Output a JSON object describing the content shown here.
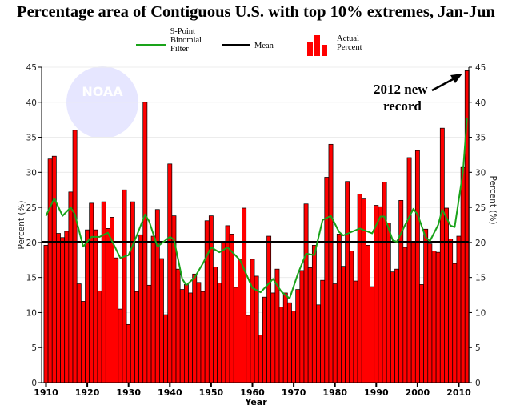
{
  "chart_data": {
    "type": "bar",
    "title": "Percentage area of Contiguous U.S. with top 10% extremes, Jan-Jun",
    "xlabel": "Year",
    "ylabel": "Percent (%)",
    "ylabel_right": "Percent (%)",
    "ylim": [
      0,
      45
    ],
    "yticks": [
      0,
      5,
      10,
      15,
      20,
      25,
      30,
      35,
      40,
      45
    ],
    "xticks": [
      1910,
      1920,
      1930,
      1940,
      1950,
      1960,
      1970,
      1980,
      1990,
      2000,
      2010
    ],
    "grid": true,
    "legend_placement": "top",
    "legend": {
      "filter": "9-Point Binomial Filter",
      "filter_lines": [
        "9-Point",
        "Binomial",
        "Filter"
      ],
      "mean": "Mean",
      "actual": "Actual Percent",
      "actual_lines": [
        "Actual",
        "Percent"
      ]
    },
    "years_start": 1910,
    "values": [
      19.6,
      31.9,
      32.3,
      21.3,
      20.7,
      21.6,
      27.2,
      36.0,
      14.1,
      11.6,
      21.8,
      25.6,
      21.8,
      13.1,
      25.8,
      22.0,
      23.6,
      17.8,
      10.5,
      27.5,
      8.3,
      25.8,
      13.0,
      21.1,
      40.0,
      13.9,
      20.9,
      24.7,
      17.7,
      9.7,
      31.2,
      23.8,
      16.2,
      13.3,
      14.0,
      12.8,
      15.5,
      14.3,
      13.0,
      23.1,
      23.8,
      16.5,
      14.2,
      20.1,
      22.4,
      21.2,
      13.6,
      17.6,
      24.9,
      9.6,
      17.6,
      15.2,
      6.8,
      12.2,
      20.9,
      12.8,
      16.2,
      10.8,
      12.8,
      11.4,
      10.2,
      13.3,
      16.0,
      25.5,
      16.4,
      19.6,
      11.1,
      14.6,
      29.3,
      34.0,
      14.1,
      21.2,
      16.6,
      28.7,
      18.8,
      14.5,
      26.9,
      26.2,
      19.6,
      13.7,
      25.3,
      25.1,
      28.6,
      22.8,
      15.8,
      16.2,
      26.0,
      19.3,
      32.1,
      20.0,
      33.1,
      14.0,
      21.9,
      19.8,
      18.8,
      18.6,
      36.3,
      24.9,
      20.5,
      17.0,
      20.9,
      30.7,
      44.5
    ],
    "mean": 20.1,
    "filter": {
      "x": [
        1910,
        1912,
        1914,
        1916,
        1917,
        1919,
        1921,
        1923,
        1925,
        1928,
        1930,
        1932,
        1934,
        1935,
        1937,
        1940,
        1941,
        1943,
        1944,
        1946,
        1948,
        1950,
        1952,
        1954,
        1957,
        1960,
        1962,
        1965,
        1967,
        1969,
        1971,
        1973,
        1975,
        1977,
        1979,
        1981,
        1982,
        1984,
        1986,
        1989,
        1991,
        1992,
        1994,
        1995,
        1997,
        1999,
        2000,
        2002,
        2003,
        2005,
        2006,
        2007,
        2008,
        2009,
        2011,
        2012
      ],
      "y": [
        23.8,
        26.3,
        23.8,
        25.0,
        24.0,
        19.4,
        20.8,
        20.8,
        21.4,
        17.8,
        18.2,
        21.0,
        24.0,
        23.0,
        19.4,
        20.8,
        20.4,
        14.8,
        13.9,
        15.0,
        17.0,
        19.3,
        18.6,
        19.3,
        17.5,
        13.5,
        12.9,
        14.8,
        13.0,
        12.0,
        15.5,
        18.4,
        18.2,
        23.2,
        23.8,
        21.5,
        21.0,
        21.5,
        22.0,
        21.3,
        23.7,
        23.7,
        20.3,
        20.1,
        22.5,
        24.8,
        24.0,
        20.7,
        20.2,
        22.5,
        24.7,
        23.5,
        22.4,
        22.2,
        30.0,
        37.8
      ]
    },
    "annotation": {
      "lines": [
        "2012 new",
        "record"
      ],
      "year": 2012
    },
    "colors": {
      "bar": "#ff0000",
      "filter": "#1aa31a",
      "mean": "#000000"
    }
  },
  "watermark": "NOAA"
}
